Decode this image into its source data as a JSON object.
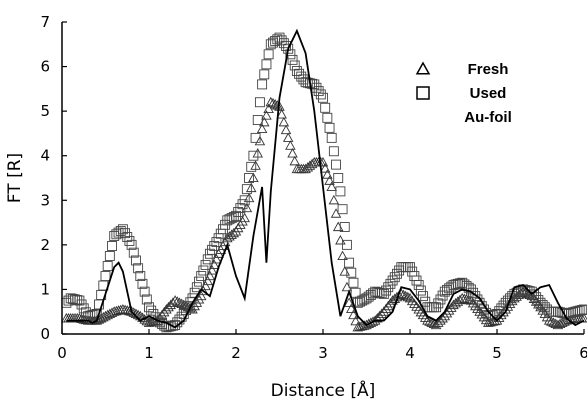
{
  "chart_data": {
    "type": "line",
    "xlabel": "Distance [Å]",
    "ylabel": "FT [R]",
    "xlim": [
      0,
      6
    ],
    "ylim": [
      0,
      7
    ],
    "x_ticks": [
      "0",
      "1",
      "2",
      "3",
      "4",
      "5",
      "6"
    ],
    "y_ticks": [
      "0",
      "1",
      "2",
      "3",
      "4",
      "5",
      "6",
      "7"
    ],
    "grid": false,
    "legend_position": "top-right",
    "series": [
      {
        "name": "Fresh",
        "marker": "triangle-open",
        "x": [
          0.05,
          0.1,
          0.2,
          0.3,
          0.4,
          0.5,
          0.6,
          0.7,
          0.8,
          0.9,
          1.0,
          1.1,
          1.2,
          1.3,
          1.4,
          1.5,
          1.6,
          1.7,
          1.8,
          1.9,
          2.0,
          2.1,
          2.2,
          2.3,
          2.4,
          2.5,
          2.6,
          2.7,
          2.8,
          2.9,
          3.0,
          3.1,
          3.2,
          3.3,
          3.4,
          3.5,
          3.6,
          3.7,
          3.8,
          3.9,
          4.0,
          4.1,
          4.2,
          4.3,
          4.4,
          4.5,
          4.6,
          4.7,
          4.8,
          4.9,
          5.0,
          5.1,
          5.2,
          5.3,
          5.4,
          5.5,
          5.6,
          5.7,
          5.8,
          5.9,
          6.0
        ],
        "values": [
          0.35,
          0.35,
          0.35,
          0.3,
          0.3,
          0.4,
          0.5,
          0.55,
          0.5,
          0.4,
          0.25,
          0.3,
          0.55,
          0.75,
          0.65,
          0.55,
          0.85,
          1.3,
          1.8,
          2.15,
          2.3,
          2.6,
          3.5,
          4.6,
          5.2,
          5.1,
          4.4,
          3.7,
          3.7,
          3.85,
          3.85,
          3.3,
          2.1,
          0.7,
          0.15,
          0.2,
          0.3,
          0.5,
          0.75,
          0.9,
          0.8,
          0.55,
          0.3,
          0.2,
          0.4,
          0.65,
          0.8,
          0.75,
          0.5,
          0.25,
          0.3,
          0.55,
          0.8,
          0.95,
          0.85,
          0.6,
          0.3,
          0.2,
          0.3,
          0.35,
          0.35
        ]
      },
      {
        "name": "Used",
        "marker": "square-open",
        "x": [
          0.05,
          0.1,
          0.2,
          0.3,
          0.4,
          0.5,
          0.6,
          0.7,
          0.8,
          0.9,
          1.0,
          1.1,
          1.2,
          1.3,
          1.4,
          1.5,
          1.6,
          1.7,
          1.8,
          1.9,
          2.0,
          2.1,
          2.2,
          2.3,
          2.4,
          2.5,
          2.6,
          2.7,
          2.8,
          2.9,
          3.0,
          3.1,
          3.2,
          3.3,
          3.4,
          3.5,
          3.6,
          3.7,
          3.8,
          3.9,
          4.0,
          4.1,
          4.2,
          4.3,
          4.4,
          4.5,
          4.6,
          4.7,
          4.8,
          4.9,
          5.0,
          5.1,
          5.2,
          5.3,
          5.4,
          5.5,
          5.6,
          5.7,
          5.8,
          5.9,
          6.0
        ],
        "values": [
          0.7,
          0.8,
          0.75,
          0.4,
          0.45,
          1.3,
          2.2,
          2.35,
          2.0,
          1.3,
          0.6,
          0.3,
          0.15,
          0.2,
          0.45,
          0.8,
          1.3,
          1.8,
          2.15,
          2.55,
          2.65,
          3.0,
          4.0,
          5.6,
          6.5,
          6.65,
          6.4,
          5.9,
          5.65,
          5.6,
          5.3,
          4.4,
          3.2,
          1.6,
          0.7,
          0.8,
          0.95,
          0.9,
          1.2,
          1.5,
          1.5,
          1.1,
          0.6,
          0.6,
          0.95,
          1.1,
          1.15,
          1.0,
          0.7,
          0.4,
          0.45,
          0.7,
          0.9,
          1.0,
          0.95,
          0.7,
          0.5,
          0.5,
          0.45,
          0.5,
          0.55
        ]
      },
      {
        "name": "Au-foil",
        "marker": "line",
        "x": [
          0.05,
          0.1,
          0.2,
          0.3,
          0.35,
          0.4,
          0.5,
          0.6,
          0.65,
          0.7,
          0.8,
          0.9,
          1.0,
          1.1,
          1.2,
          1.3,
          1.4,
          1.5,
          1.6,
          1.7,
          1.8,
          1.9,
          2.0,
          2.1,
          2.2,
          2.3,
          2.35,
          2.4,
          2.5,
          2.6,
          2.7,
          2.8,
          2.9,
          3.0,
          3.1,
          3.2,
          3.3,
          3.4,
          3.5,
          3.6,
          3.7,
          3.8,
          3.9,
          4.0,
          4.1,
          4.2,
          4.3,
          4.4,
          4.5,
          4.6,
          4.7,
          4.8,
          4.9,
          5.0,
          5.1,
          5.2,
          5.3,
          5.4,
          5.5,
          5.6,
          5.7,
          5.8,
          5.9,
          6.0
        ],
        "values": [
          0.3,
          0.3,
          0.3,
          0.3,
          0.25,
          0.3,
          0.9,
          1.5,
          1.6,
          1.4,
          0.5,
          0.3,
          0.4,
          0.3,
          0.25,
          0.15,
          0.3,
          0.7,
          1.0,
          0.85,
          1.5,
          2.0,
          1.3,
          0.8,
          2.2,
          3.3,
          1.6,
          3.2,
          5.3,
          6.4,
          6.8,
          6.3,
          5.0,
          3.3,
          1.6,
          0.4,
          0.95,
          0.4,
          0.2,
          0.3,
          0.3,
          0.5,
          1.05,
          1.0,
          0.75,
          0.4,
          0.3,
          0.5,
          0.9,
          1.0,
          0.95,
          0.8,
          0.5,
          0.3,
          0.5,
          1.05,
          1.1,
          0.9,
          1.05,
          1.1,
          0.7,
          0.35,
          0.2,
          0.3
        ]
      }
    ]
  }
}
